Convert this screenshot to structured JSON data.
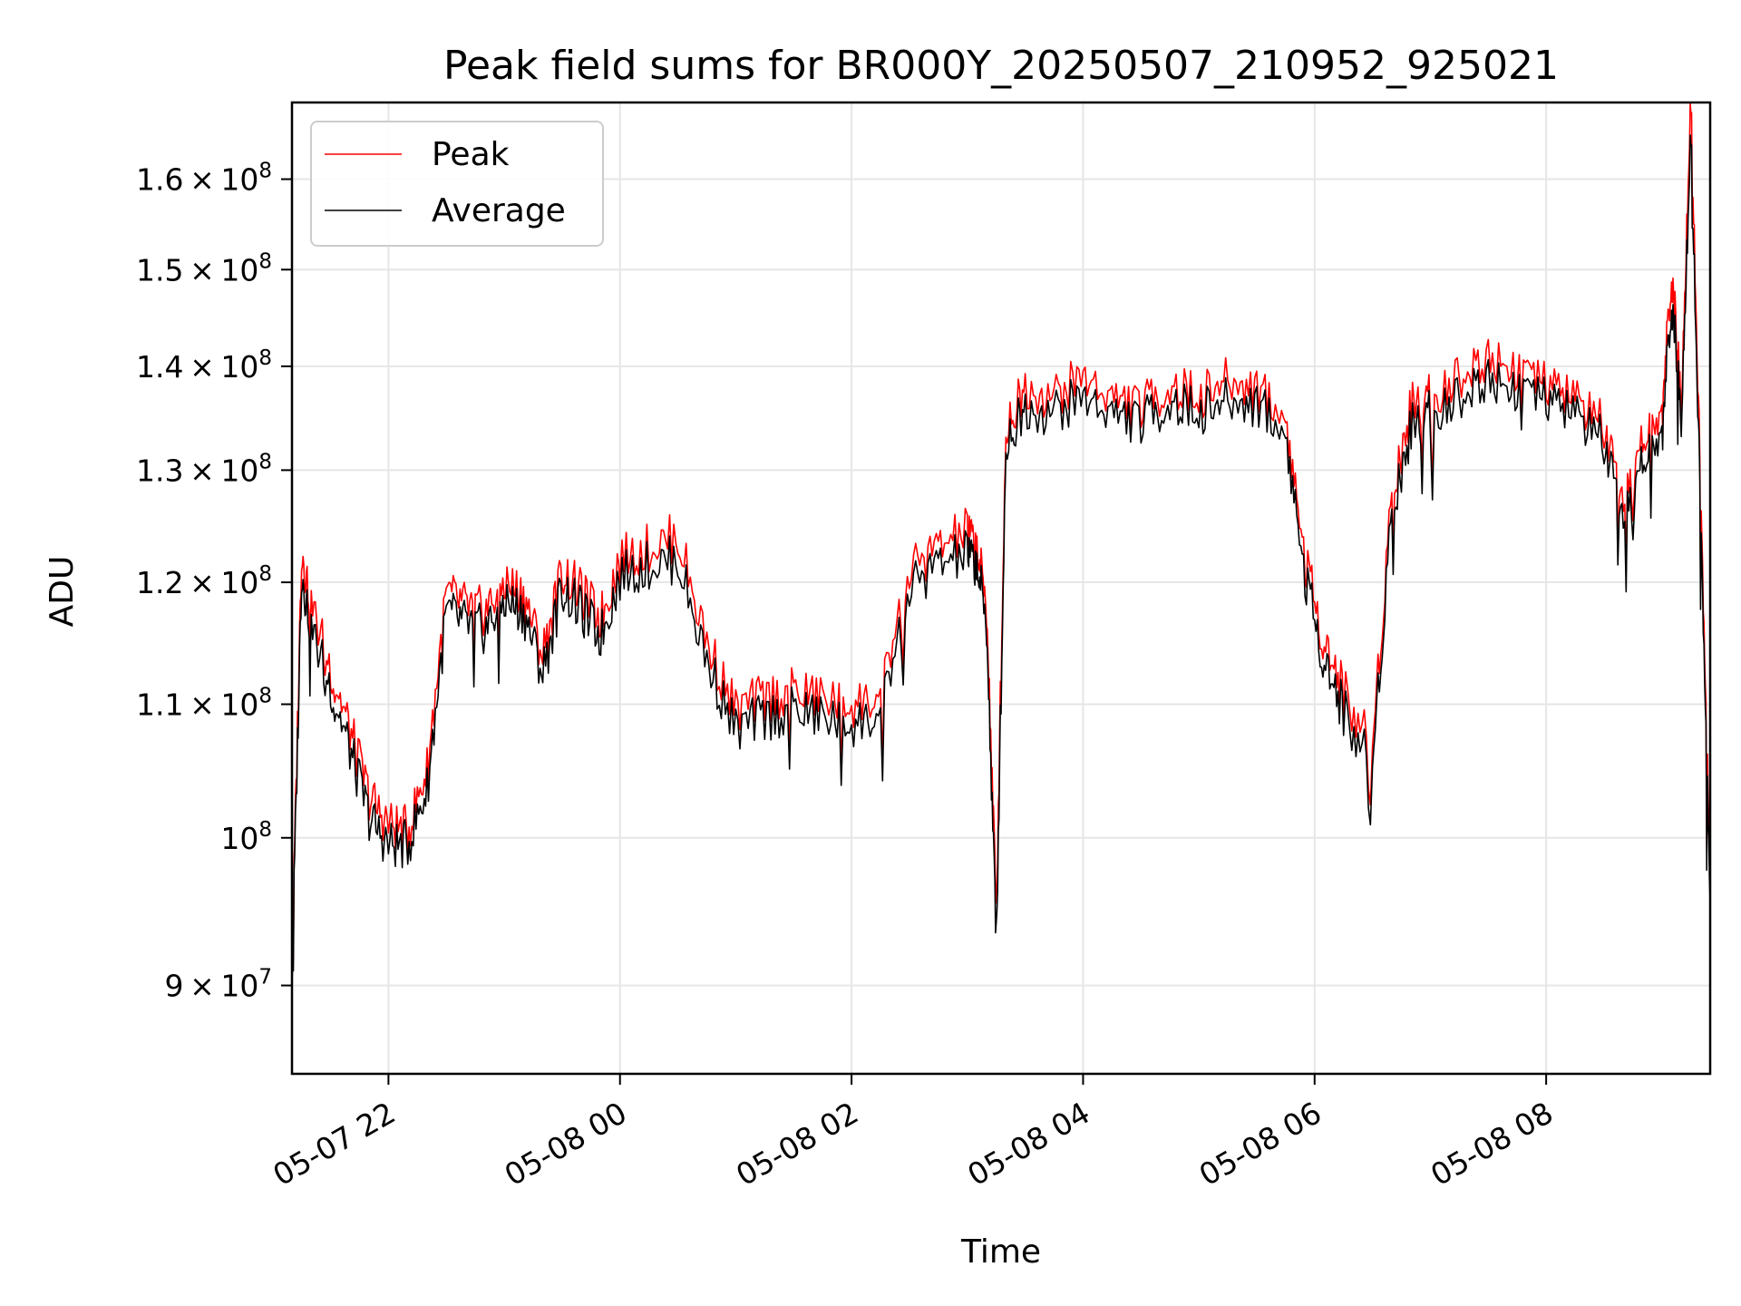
{
  "chart_data": {
    "type": "line",
    "title": "Peak field sums for BR000Y_20250507_210952_925021",
    "xlabel": "Time",
    "ylabel": "ADU",
    "yscale": "log",
    "grid": true,
    "legend_position": "top-left",
    "xlim": [
      "2025-05-07 21:10",
      "2025-05-08 09:25"
    ],
    "ylim": [
      84500000,
      169000000
    ],
    "x_ticks": [
      {
        "value": "2025-05-07 22:00",
        "label": "05-07 22"
      },
      {
        "value": "2025-05-08 00:00",
        "label": "05-08 00"
      },
      {
        "value": "2025-05-08 02:00",
        "label": "05-08 02"
      },
      {
        "value": "2025-05-08 04:00",
        "label": "05-08 04"
      },
      {
        "value": "2025-05-08 06:00",
        "label": "05-08 06"
      },
      {
        "value": "2025-05-08 08:00",
        "label": "05-08 08"
      }
    ],
    "y_ticks": [
      {
        "value": 90000000,
        "mantissa": "9",
        "exponent": "7"
      },
      {
        "value": 100000000,
        "mantissa": "",
        "exponent": "8"
      },
      {
        "value": 110000000,
        "mantissa": "1.1",
        "exponent": "8"
      },
      {
        "value": 120000000,
        "mantissa": "1.2",
        "exponent": "8"
      },
      {
        "value": 130000000,
        "mantissa": "1.3",
        "exponent": "8"
      },
      {
        "value": 140000000,
        "mantissa": "1.4",
        "exponent": "8"
      },
      {
        "value": 150000000,
        "mantissa": "1.5",
        "exponent": "8"
      },
      {
        "value": 160000000,
        "mantissa": "1.6",
        "exponent": "8"
      }
    ],
    "series": [
      {
        "name": "Peak",
        "color": "#ff0000"
      },
      {
        "name": "Average",
        "color": "#000000"
      }
    ],
    "x": [
      "2025-05-07 21:10",
      "2025-05-07 21:15",
      "2025-05-07 21:20",
      "2025-05-07 21:30",
      "2025-05-07 21:40",
      "2025-05-07 21:50",
      "2025-05-07 22:00",
      "2025-05-07 22:10",
      "2025-05-07 22:20",
      "2025-05-07 22:30",
      "2025-05-07 22:40",
      "2025-05-07 22:50",
      "2025-05-07 23:00",
      "2025-05-07 23:10",
      "2025-05-07 23:20",
      "2025-05-07 23:30",
      "2025-05-07 23:40",
      "2025-05-07 23:50",
      "2025-05-08 00:00",
      "2025-05-08 00:15",
      "2025-05-08 00:30",
      "2025-05-08 00:45",
      "2025-05-08 01:00",
      "2025-05-08 01:15",
      "2025-05-08 01:30",
      "2025-05-08 01:45",
      "2025-05-08 02:00",
      "2025-05-08 02:15",
      "2025-05-08 02:30",
      "2025-05-08 02:45",
      "2025-05-08 03:00",
      "2025-05-08 03:05",
      "2025-05-08 03:10",
      "2025-05-08 03:15",
      "2025-05-08 03:20",
      "2025-05-08 03:30",
      "2025-05-08 03:45",
      "2025-05-08 04:00",
      "2025-05-08 04:15",
      "2025-05-08 04:30",
      "2025-05-08 04:45",
      "2025-05-08 05:00",
      "2025-05-08 05:15",
      "2025-05-08 05:30",
      "2025-05-08 05:45",
      "2025-05-08 05:55",
      "2025-05-08 06:05",
      "2025-05-08 06:15",
      "2025-05-08 06:30",
      "2025-05-08 06:40",
      "2025-05-08 06:50",
      "2025-05-08 07:00",
      "2025-05-08 07:15",
      "2025-05-08 07:30",
      "2025-05-08 07:45",
      "2025-05-08 08:00",
      "2025-05-08 08:15",
      "2025-05-08 08:30",
      "2025-05-08 08:40",
      "2025-05-08 08:50",
      "2025-05-08 09:00",
      "2025-05-08 09:05",
      "2025-05-08 09:10",
      "2025-05-08 09:15",
      "2025-05-08 09:20",
      "2025-05-08 09:25"
    ],
    "peak": [
      91000000,
      123000000,
      118000000,
      113000000,
      108000000,
      103000000,
      101000000,
      100500000,
      105000000,
      119000000,
      118000000,
      117500000,
      120000000,
      119000000,
      114000000,
      121000000,
      119000000,
      117000000,
      122000000,
      123000000,
      124000000,
      115000000,
      109500000,
      110500000,
      111000000,
      110500000,
      110000000,
      110500000,
      121000000,
      123000000,
      124500000,
      123000000,
      118000000,
      95000000,
      134000000,
      138000000,
      137000000,
      139000000,
      137000000,
      136000000,
      138000000,
      137000000,
      138500000,
      138000000,
      135000000,
      122000000,
      115000000,
      111000000,
      107000000,
      128000000,
      136000000,
      137000000,
      139000000,
      141000000,
      140000000,
      138000000,
      137000000,
      134000000,
      126000000,
      133000000,
      135000000,
      150000000,
      137000000,
      170000000,
      128000000,
      97000000
    ],
    "average": [
      90500000,
      121000000,
      116000000,
      111500000,
      106500000,
      101500000,
      99500000,
      99500000,
      103500000,
      117500000,
      116500000,
      116000000,
      118500000,
      117500000,
      112500000,
      119500000,
      117500000,
      115500000,
      120500000,
      121500000,
      122000000,
      113500000,
      108000000,
      109000000,
      109500000,
      109000000,
      108500000,
      109000000,
      119500000,
      121500000,
      122500000,
      121500000,
      116500000,
      93000000,
      132500000,
      136000000,
      135500000,
      137000000,
      135500000,
      134500000,
      136500000,
      135500000,
      136500000,
      136500000,
      133500000,
      120500000,
      113500000,
      109500000,
      105500000,
      126500000,
      134000000,
      135500000,
      137000000,
      139000000,
      138000000,
      136500000,
      135500000,
      132500000,
      124500000,
      131000000,
      133000000,
      147000000,
      135500000,
      166000000,
      126000000,
      95500000
    ]
  }
}
